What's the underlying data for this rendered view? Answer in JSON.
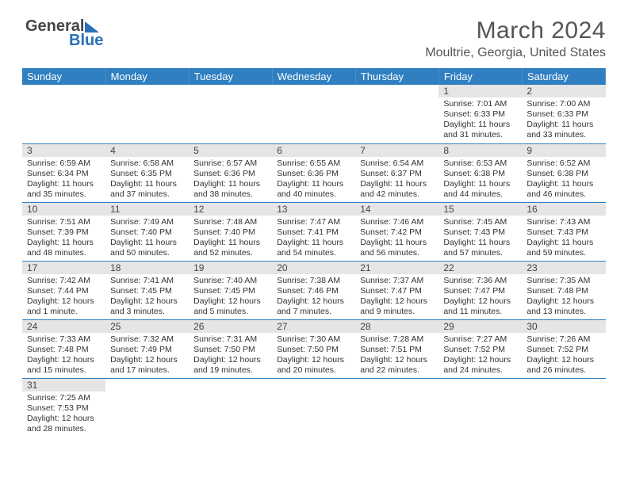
{
  "logo": {
    "part1": "General",
    "part2": "Blue"
  },
  "title": "March 2024",
  "location": "Moultrie, Georgia, United States",
  "headers": [
    "Sunday",
    "Monday",
    "Tuesday",
    "Wednesday",
    "Thursday",
    "Friday",
    "Saturday"
  ],
  "colors": {
    "accent": "#2f7fc1",
    "header_bg": "#e5e5e5"
  },
  "weeks": [
    [
      null,
      null,
      null,
      null,
      null,
      {
        "n": "1",
        "sr": "7:01 AM",
        "ss": "6:33 PM",
        "dl": "11 hours and 31 minutes."
      },
      {
        "n": "2",
        "sr": "7:00 AM",
        "ss": "6:33 PM",
        "dl": "11 hours and 33 minutes."
      }
    ],
    [
      {
        "n": "3",
        "sr": "6:59 AM",
        "ss": "6:34 PM",
        "dl": "11 hours and 35 minutes."
      },
      {
        "n": "4",
        "sr": "6:58 AM",
        "ss": "6:35 PM",
        "dl": "11 hours and 37 minutes."
      },
      {
        "n": "5",
        "sr": "6:57 AM",
        "ss": "6:36 PM",
        "dl": "11 hours and 38 minutes."
      },
      {
        "n": "6",
        "sr": "6:55 AM",
        "ss": "6:36 PM",
        "dl": "11 hours and 40 minutes."
      },
      {
        "n": "7",
        "sr": "6:54 AM",
        "ss": "6:37 PM",
        "dl": "11 hours and 42 minutes."
      },
      {
        "n": "8",
        "sr": "6:53 AM",
        "ss": "6:38 PM",
        "dl": "11 hours and 44 minutes."
      },
      {
        "n": "9",
        "sr": "6:52 AM",
        "ss": "6:38 PM",
        "dl": "11 hours and 46 minutes."
      }
    ],
    [
      {
        "n": "10",
        "sr": "7:51 AM",
        "ss": "7:39 PM",
        "dl": "11 hours and 48 minutes."
      },
      {
        "n": "11",
        "sr": "7:49 AM",
        "ss": "7:40 PM",
        "dl": "11 hours and 50 minutes."
      },
      {
        "n": "12",
        "sr": "7:48 AM",
        "ss": "7:40 PM",
        "dl": "11 hours and 52 minutes."
      },
      {
        "n": "13",
        "sr": "7:47 AM",
        "ss": "7:41 PM",
        "dl": "11 hours and 54 minutes."
      },
      {
        "n": "14",
        "sr": "7:46 AM",
        "ss": "7:42 PM",
        "dl": "11 hours and 56 minutes."
      },
      {
        "n": "15",
        "sr": "7:45 AM",
        "ss": "7:43 PM",
        "dl": "11 hours and 57 minutes."
      },
      {
        "n": "16",
        "sr": "7:43 AM",
        "ss": "7:43 PM",
        "dl": "11 hours and 59 minutes."
      }
    ],
    [
      {
        "n": "17",
        "sr": "7:42 AM",
        "ss": "7:44 PM",
        "dl": "12 hours and 1 minute."
      },
      {
        "n": "18",
        "sr": "7:41 AM",
        "ss": "7:45 PM",
        "dl": "12 hours and 3 minutes."
      },
      {
        "n": "19",
        "sr": "7:40 AM",
        "ss": "7:45 PM",
        "dl": "12 hours and 5 minutes."
      },
      {
        "n": "20",
        "sr": "7:38 AM",
        "ss": "7:46 PM",
        "dl": "12 hours and 7 minutes."
      },
      {
        "n": "21",
        "sr": "7:37 AM",
        "ss": "7:47 PM",
        "dl": "12 hours and 9 minutes."
      },
      {
        "n": "22",
        "sr": "7:36 AM",
        "ss": "7:47 PM",
        "dl": "12 hours and 11 minutes."
      },
      {
        "n": "23",
        "sr": "7:35 AM",
        "ss": "7:48 PM",
        "dl": "12 hours and 13 minutes."
      }
    ],
    [
      {
        "n": "24",
        "sr": "7:33 AM",
        "ss": "7:48 PM",
        "dl": "12 hours and 15 minutes."
      },
      {
        "n": "25",
        "sr": "7:32 AM",
        "ss": "7:49 PM",
        "dl": "12 hours and 17 minutes."
      },
      {
        "n": "26",
        "sr": "7:31 AM",
        "ss": "7:50 PM",
        "dl": "12 hours and 19 minutes."
      },
      {
        "n": "27",
        "sr": "7:30 AM",
        "ss": "7:50 PM",
        "dl": "12 hours and 20 minutes."
      },
      {
        "n": "28",
        "sr": "7:28 AM",
        "ss": "7:51 PM",
        "dl": "12 hours and 22 minutes."
      },
      {
        "n": "29",
        "sr": "7:27 AM",
        "ss": "7:52 PM",
        "dl": "12 hours and 24 minutes."
      },
      {
        "n": "30",
        "sr": "7:26 AM",
        "ss": "7:52 PM",
        "dl": "12 hours and 26 minutes."
      }
    ],
    [
      {
        "n": "31",
        "sr": "7:25 AM",
        "ss": "7:53 PM",
        "dl": "12 hours and 28 minutes."
      },
      null,
      null,
      null,
      null,
      null,
      null
    ]
  ],
  "labels": {
    "sunrise": "Sunrise:",
    "sunset": "Sunset:",
    "daylight": "Daylight:"
  }
}
